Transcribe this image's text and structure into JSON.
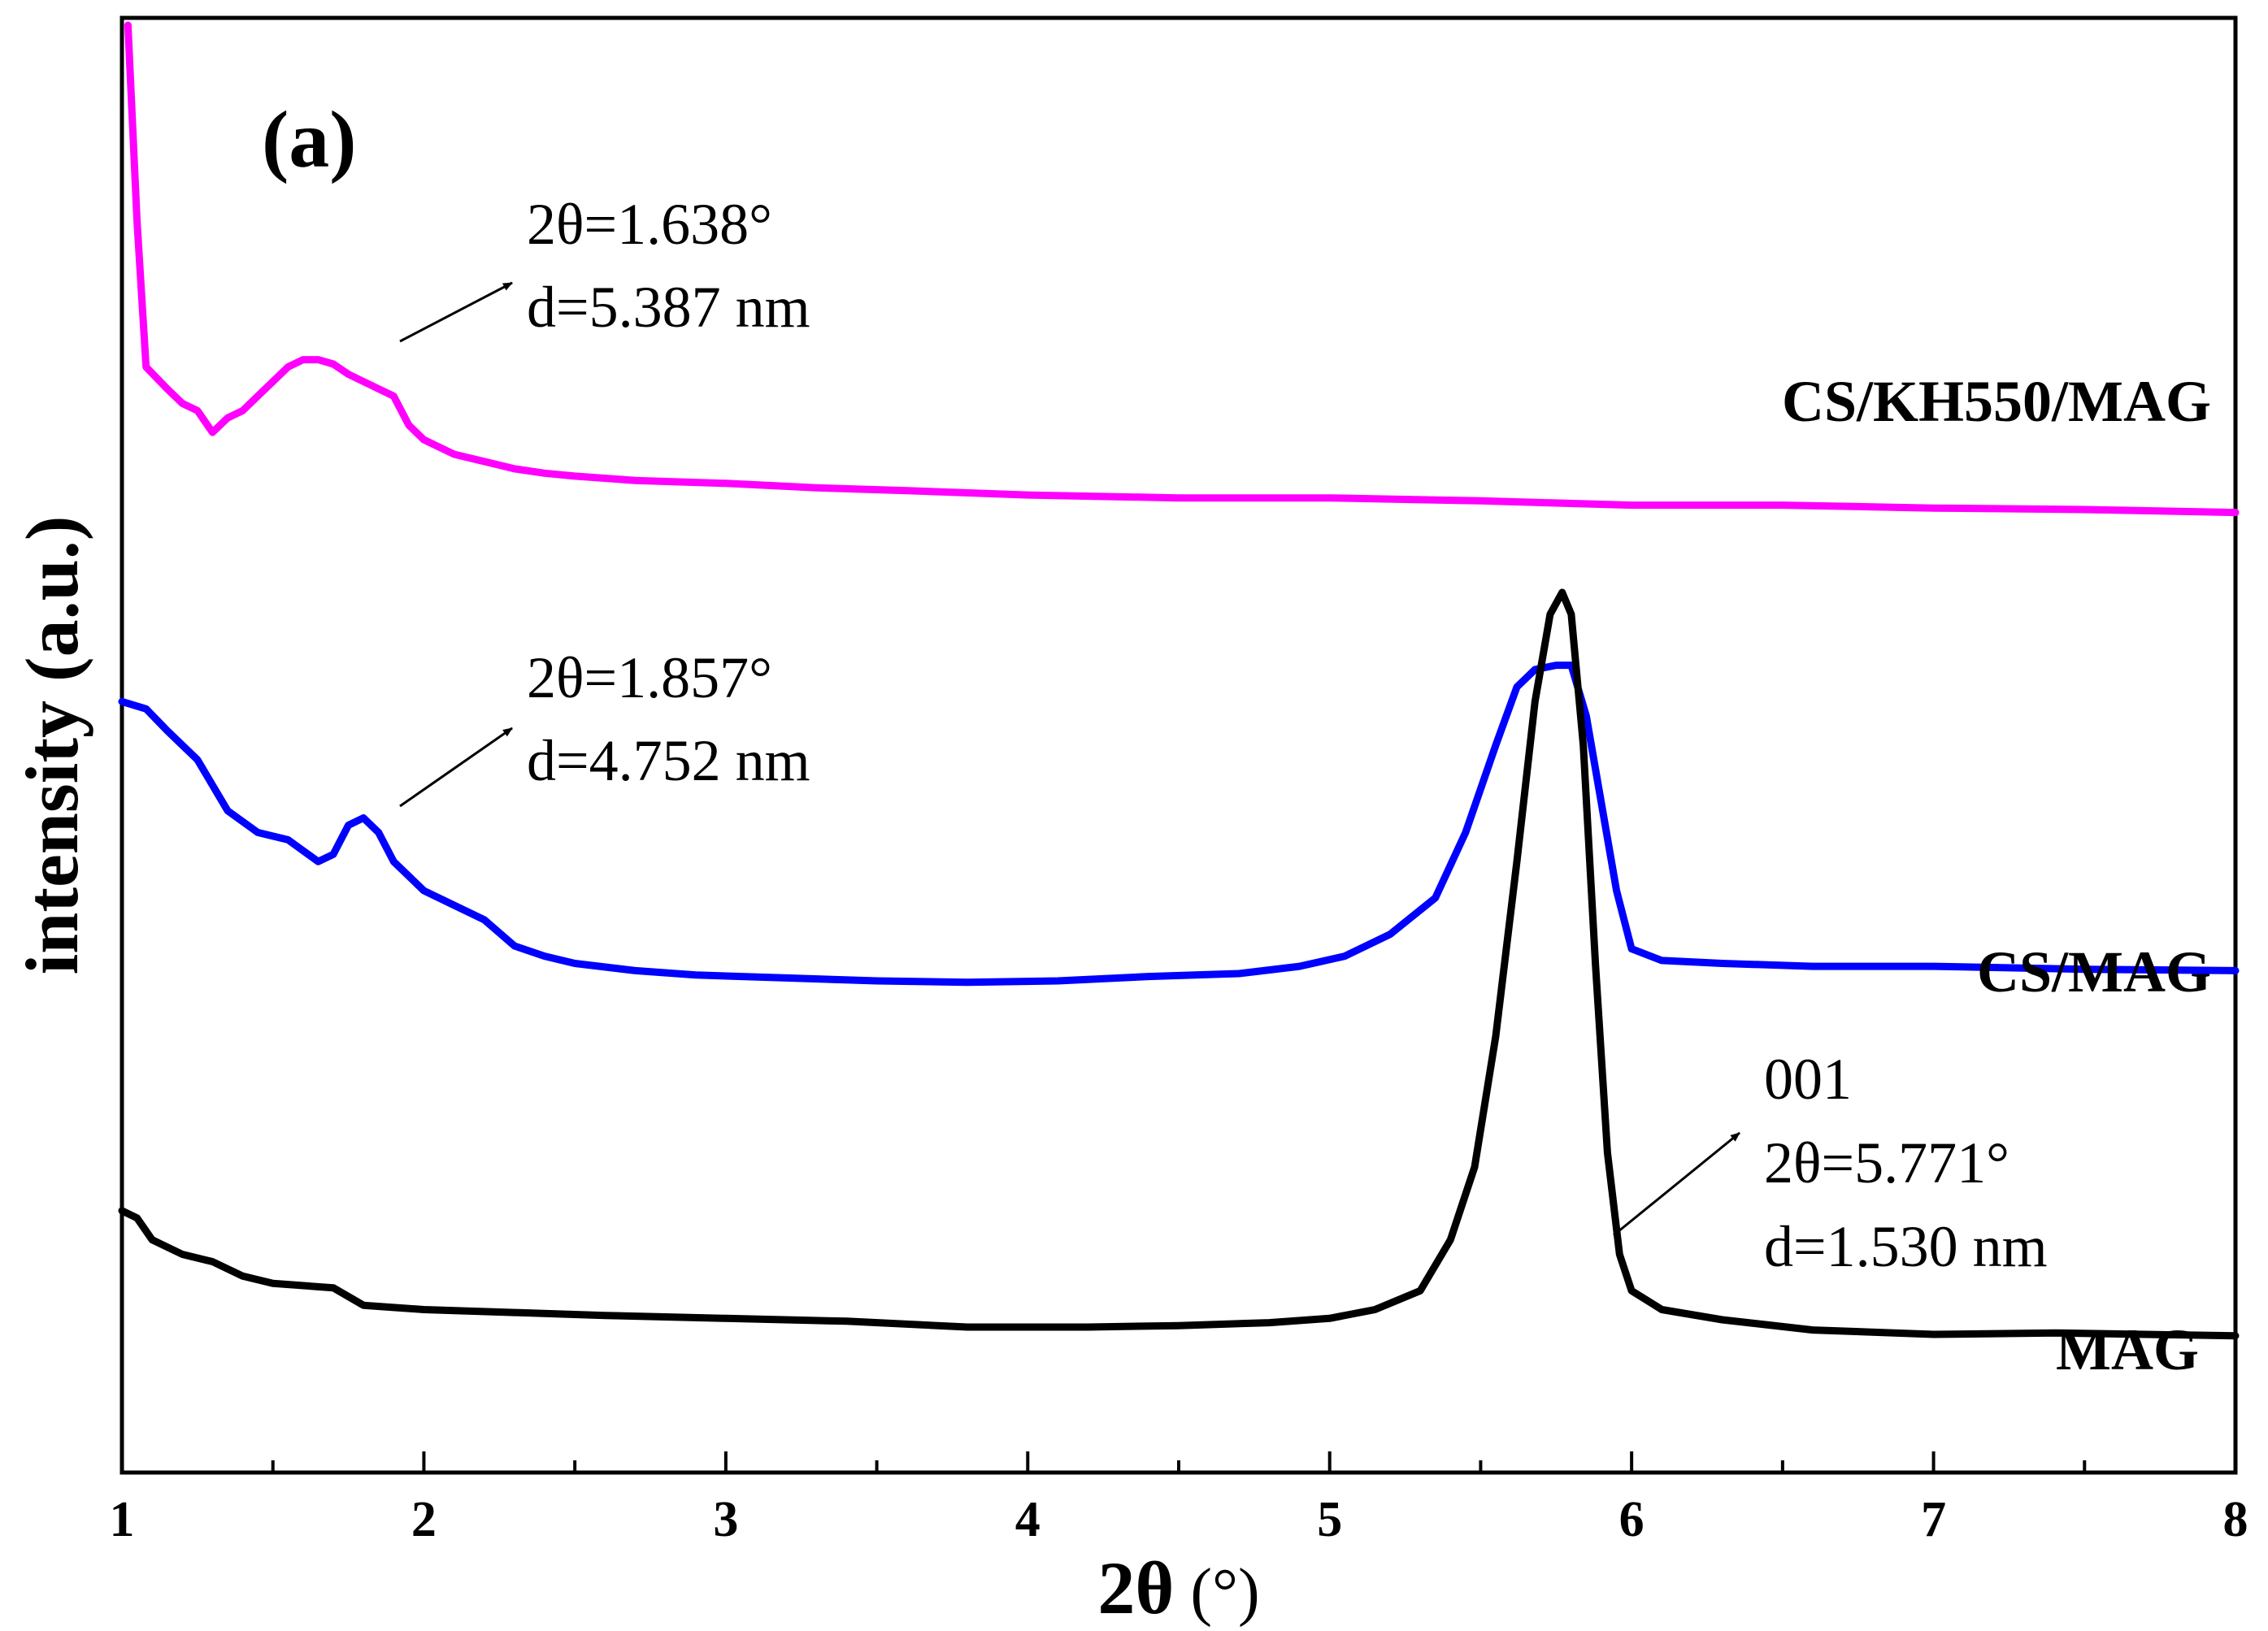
{
  "chart_data": {
    "type": "line",
    "panel_label": "(a)",
    "xlabel": "2θ",
    "xlabel_unit": "(°)",
    "ylabel": "intensity (a.u.)",
    "xlim": [
      1,
      8
    ],
    "ylim": [
      0,
      10
    ],
    "x_ticks": [
      1,
      2,
      3,
      4,
      5,
      6,
      7,
      8
    ],
    "y_ticks_shown": false,
    "series": [
      {
        "name": "CS/KH550/MAG",
        "color": "#ff00ff",
        "x": [
          1.02,
          1.05,
          1.08,
          1.15,
          1.2,
          1.25,
          1.3,
          1.35,
          1.4,
          1.45,
          1.5,
          1.55,
          1.6,
          1.65,
          1.7,
          1.75,
          1.8,
          1.85,
          1.9,
          1.95,
          2.0,
          2.1,
          2.2,
          2.3,
          2.4,
          2.5,
          2.7,
          3.0,
          3.3,
          3.6,
          4.0,
          4.5,
          5.0,
          5.5,
          6.0,
          6.5,
          7.0,
          7.5,
          8.0
        ],
        "y": [
          9.95,
          8.6,
          7.6,
          7.45,
          7.35,
          7.3,
          7.15,
          7.25,
          7.3,
          7.4,
          7.5,
          7.6,
          7.65,
          7.65,
          7.62,
          7.55,
          7.5,
          7.45,
          7.4,
          7.2,
          7.1,
          7.0,
          6.95,
          6.9,
          6.87,
          6.85,
          6.82,
          6.8,
          6.77,
          6.75,
          6.72,
          6.7,
          6.7,
          6.68,
          6.65,
          6.65,
          6.63,
          6.62,
          6.6
        ]
      },
      {
        "name": "CS/MAG",
        "color": "#0000ff",
        "x": [
          1.0,
          1.08,
          1.15,
          1.25,
          1.35,
          1.45,
          1.55,
          1.65,
          1.7,
          1.75,
          1.8,
          1.85,
          1.9,
          2.0,
          2.1,
          2.2,
          2.3,
          2.4,
          2.5,
          2.7,
          2.9,
          3.2,
          3.5,
          3.8,
          4.1,
          4.4,
          4.7,
          4.9,
          5.05,
          5.2,
          5.35,
          5.45,
          5.55,
          5.62,
          5.68,
          5.75,
          5.8,
          5.85,
          5.9,
          5.95,
          6.0,
          6.1,
          6.3,
          6.6,
          7.0,
          7.5,
          8.0
        ],
        "y": [
          5.3,
          5.25,
          5.1,
          4.9,
          4.55,
          4.4,
          4.35,
          4.2,
          4.25,
          4.45,
          4.5,
          4.4,
          4.2,
          4.0,
          3.9,
          3.8,
          3.62,
          3.55,
          3.5,
          3.45,
          3.42,
          3.4,
          3.38,
          3.37,
          3.38,
          3.41,
          3.43,
          3.48,
          3.55,
          3.7,
          3.95,
          4.4,
          5.0,
          5.4,
          5.52,
          5.55,
          5.55,
          5.2,
          4.6,
          4.0,
          3.6,
          3.52,
          3.5,
          3.48,
          3.48,
          3.46,
          3.45
        ]
      },
      {
        "name": "MAG",
        "color": "#000000",
        "x": [
          1.0,
          1.05,
          1.1,
          1.2,
          1.3,
          1.4,
          1.5,
          1.7,
          1.8,
          2.0,
          2.3,
          2.6,
          3.0,
          3.4,
          3.8,
          4.2,
          4.5,
          4.8,
          5.0,
          5.15,
          5.3,
          5.4,
          5.48,
          5.55,
          5.62,
          5.68,
          5.73,
          5.77,
          5.8,
          5.84,
          5.88,
          5.92,
          5.96,
          6.0,
          6.1,
          6.3,
          6.6,
          7.0,
          7.4,
          7.7,
          8.0
        ],
        "y": [
          1.8,
          1.75,
          1.6,
          1.5,
          1.45,
          1.35,
          1.3,
          1.27,
          1.15,
          1.12,
          1.1,
          1.08,
          1.06,
          1.04,
          1.0,
          1.0,
          1.01,
          1.03,
          1.06,
          1.12,
          1.25,
          1.6,
          2.1,
          3.0,
          4.2,
          5.3,
          5.9,
          6.05,
          5.9,
          5.0,
          3.5,
          2.2,
          1.5,
          1.25,
          1.12,
          1.05,
          0.98,
          0.95,
          0.96,
          0.95,
          0.94
        ]
      }
    ],
    "series_labels": [
      {
        "text": "CS/KH550/MAG"
      },
      {
        "text": "CS/MAG"
      },
      {
        "text": "MAG"
      }
    ],
    "annotations": [
      {
        "series": "CS/KH550/MAG",
        "lines": [
          "2θ=1.638°",
          "d=5.387 nm"
        ]
      },
      {
        "series": "CS/MAG",
        "lines": [
          "2θ=1.857°",
          "d=4.752 nm"
        ]
      },
      {
        "series": "MAG",
        "lines": [
          "001",
          "2θ=5.771°",
          "d=1.530 nm"
        ]
      }
    ]
  }
}
